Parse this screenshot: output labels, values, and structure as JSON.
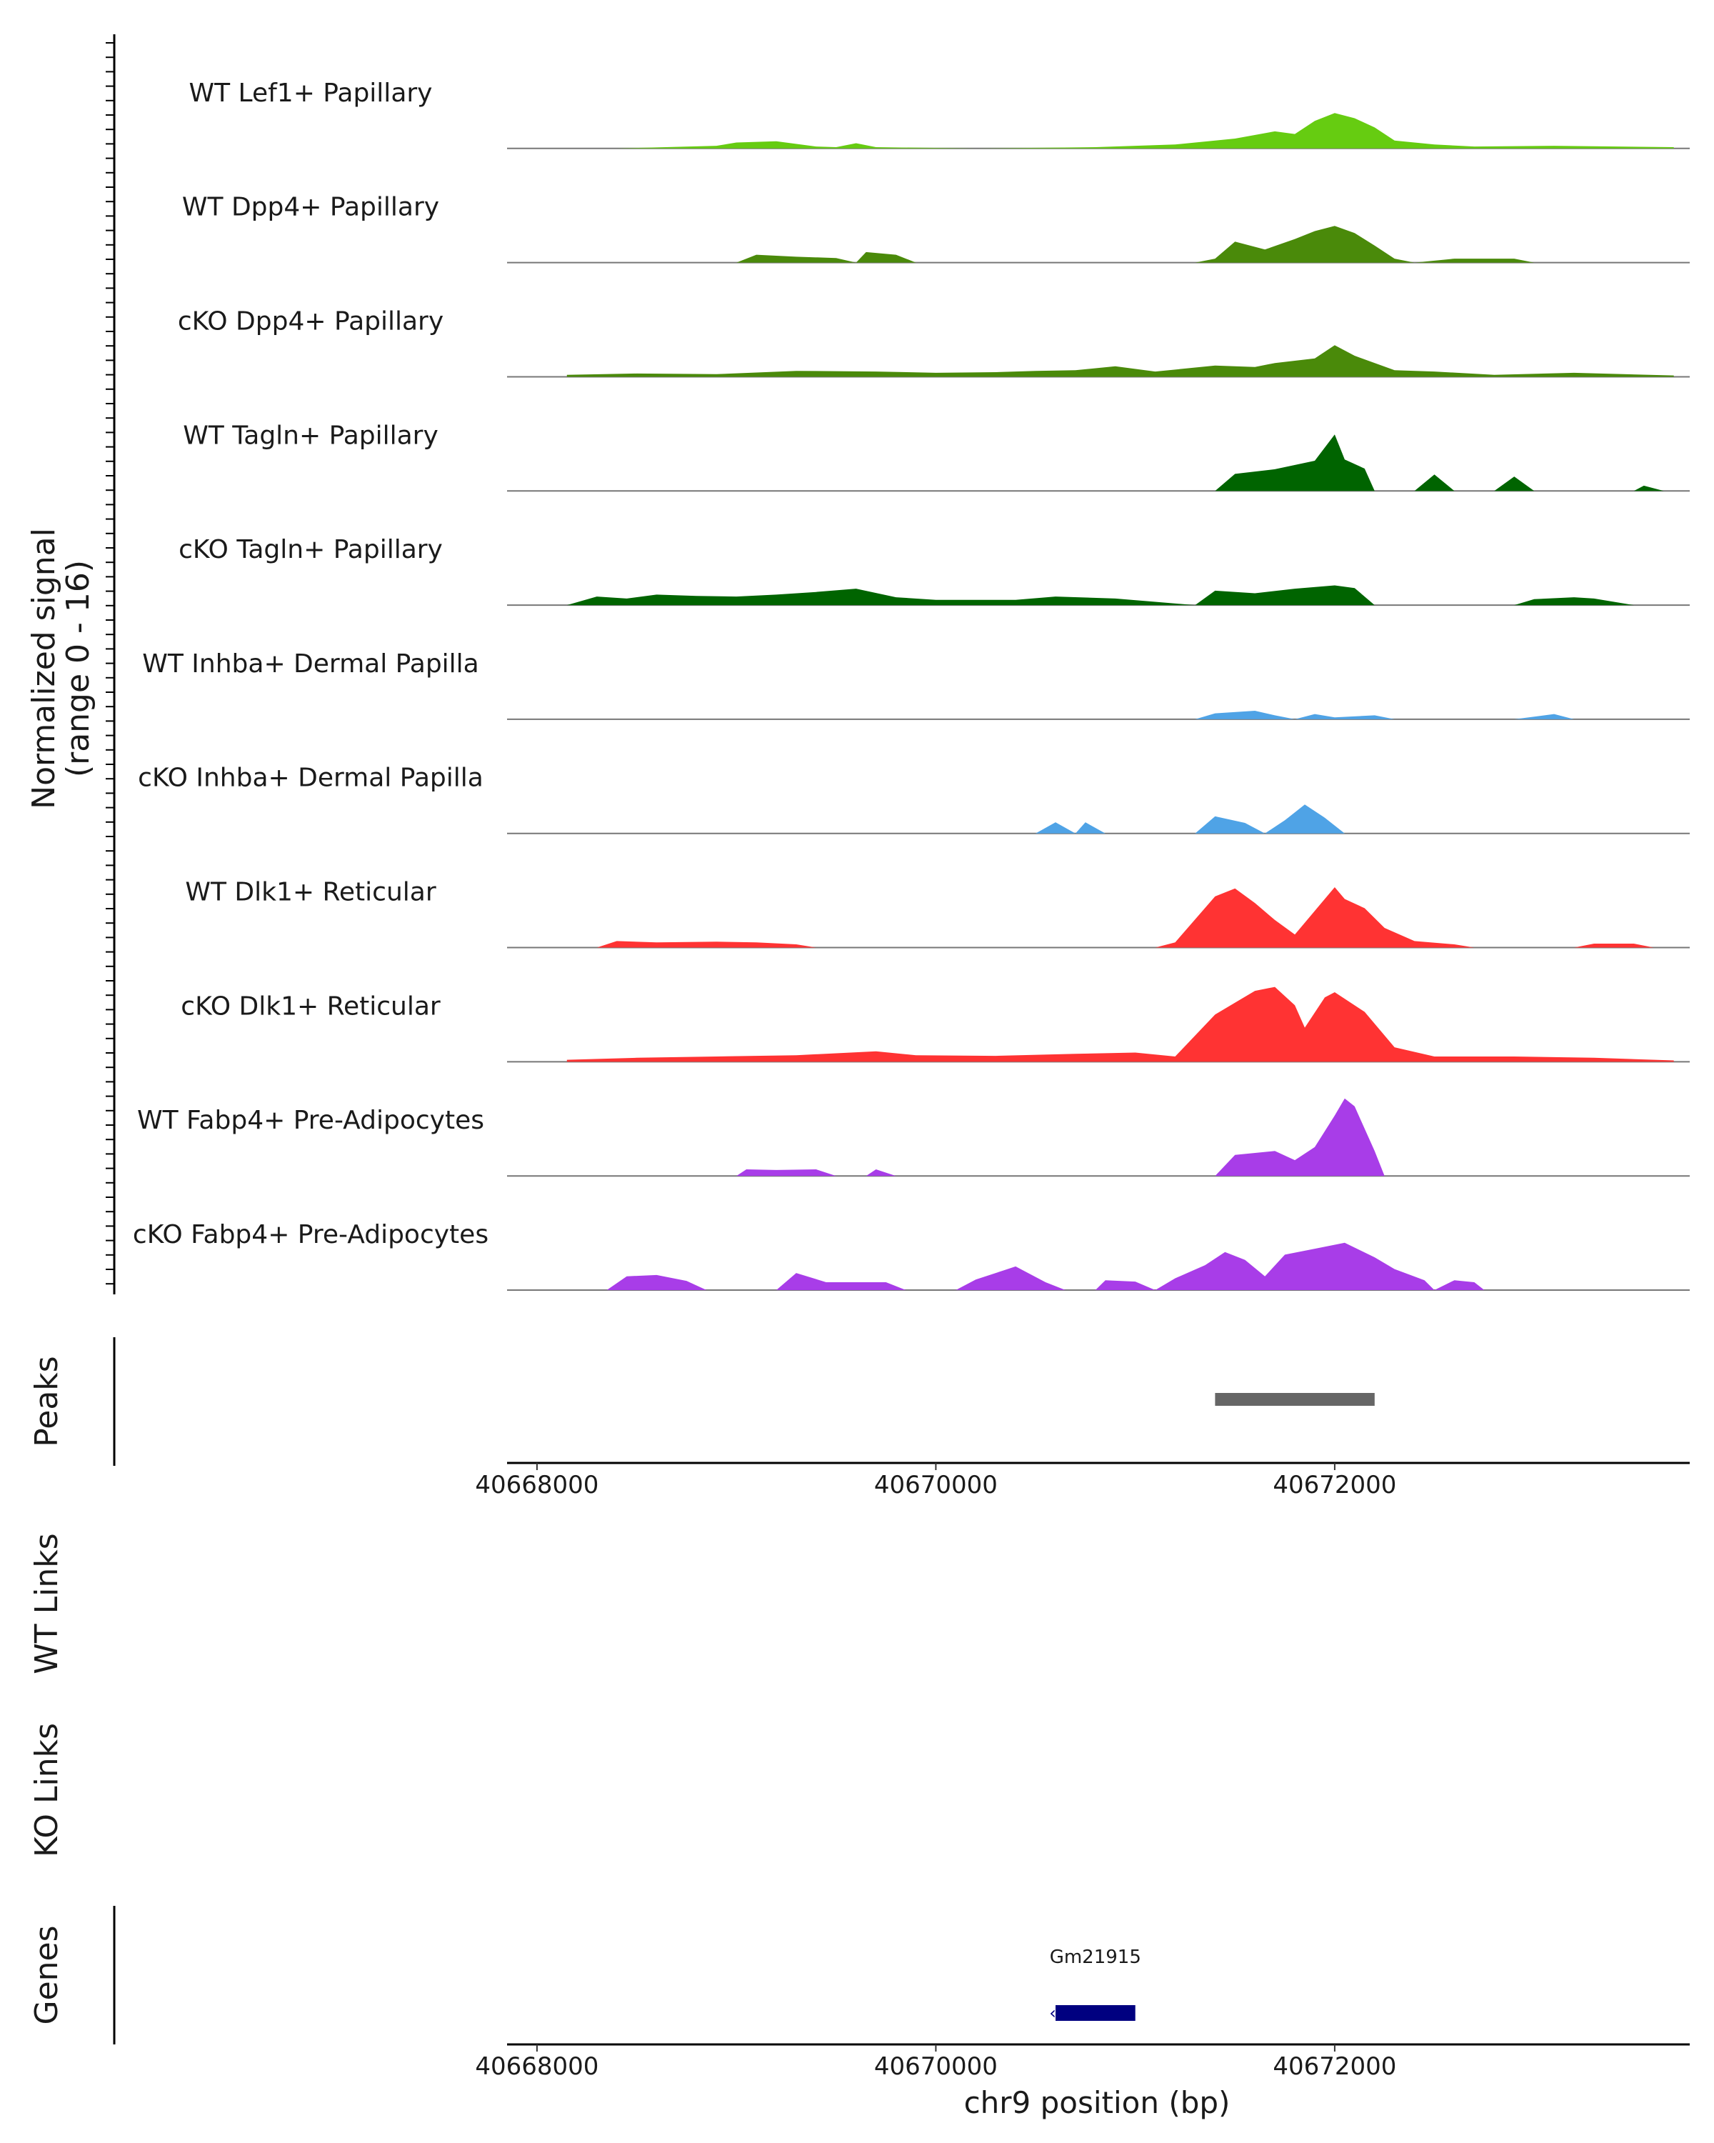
{
  "y_axis": {
    "label_line1": "Normalized signal",
    "label_line2": "(range 0 - 16)"
  },
  "panels": {
    "peaks": "Peaks",
    "wt_links": "WT Links",
    "ko_links": "KO Links",
    "genes": "Genes"
  },
  "x_axis": {
    "label": "chr9 position (bp)",
    "ticks": [
      "40668000",
      "40670000",
      "40672000"
    ]
  },
  "gene": {
    "name": "Gm21915"
  },
  "chart_data": {
    "type": "area",
    "x_unit": "bp",
    "xlim": [
      40667850,
      40673780
    ],
    "ylim": [
      0,
      16
    ],
    "tracks": [
      {
        "name": "WT Lef1+ Papillary",
        "color": "#66CC11",
        "points": [
          [
            40668400,
            0
          ],
          [
            40668900,
            0.4
          ],
          [
            40669000,
            0.9
          ],
          [
            40669200,
            1.1
          ],
          [
            40669400,
            0.3
          ],
          [
            40669500,
            0.2
          ],
          [
            40669600,
            0.8
          ],
          [
            40669700,
            0.2
          ],
          [
            40670200,
            0
          ],
          [
            40670800,
            0.2
          ],
          [
            40671200,
            0.6
          ],
          [
            40671500,
            1.5
          ],
          [
            40671700,
            2.6
          ],
          [
            40671800,
            2.2
          ],
          [
            40671900,
            4.2
          ],
          [
            40672000,
            5.4
          ],
          [
            40672100,
            4.6
          ],
          [
            40672200,
            3.2
          ],
          [
            40672300,
            1.2
          ],
          [
            40672500,
            0.6
          ],
          [
            40672700,
            0.3
          ],
          [
            40673100,
            0.4
          ],
          [
            40673700,
            0.2
          ]
        ]
      },
      {
        "name": "WT Dpp4+ Papillary",
        "color": "#4A8A0A",
        "points": [
          [
            40669000,
            0
          ],
          [
            40669100,
            1.2
          ],
          [
            40669300,
            0.9
          ],
          [
            40669500,
            0.7
          ],
          [
            40669600,
            0
          ],
          [
            40669650,
            1.6
          ],
          [
            40669800,
            1.2
          ],
          [
            40669900,
            0
          ],
          [
            40671300,
            0
          ],
          [
            40671400,
            0.6
          ],
          [
            40671500,
            3.2
          ],
          [
            40671650,
            2.0
          ],
          [
            40671800,
            3.6
          ],
          [
            40671900,
            4.8
          ],
          [
            40672000,
            5.6
          ],
          [
            40672100,
            4.5
          ],
          [
            40672200,
            2.6
          ],
          [
            40672300,
            0.6
          ],
          [
            40672400,
            0
          ],
          [
            40672600,
            0.6
          ],
          [
            40672900,
            0.6
          ],
          [
            40673000,
            0
          ]
        ]
      },
      {
        "name": "cKO Dpp4+ Papillary",
        "color": "#4A8A0A",
        "points": [
          [
            40668150,
            0.3
          ],
          [
            40668500,
            0.5
          ],
          [
            40668900,
            0.4
          ],
          [
            40669300,
            0.9
          ],
          [
            40669700,
            0.8
          ],
          [
            40670000,
            0.6
          ],
          [
            40670300,
            0.7
          ],
          [
            40670500,
            0.9
          ],
          [
            40670700,
            1.0
          ],
          [
            40670900,
            1.6
          ],
          [
            40671100,
            0.8
          ],
          [
            40671400,
            1.7
          ],
          [
            40671600,
            1.5
          ],
          [
            40671700,
            2.1
          ],
          [
            40671900,
            2.8
          ],
          [
            40672000,
            4.8
          ],
          [
            40672100,
            3.2
          ],
          [
            40672300,
            1.0
          ],
          [
            40672500,
            0.8
          ],
          [
            40672800,
            0.3
          ],
          [
            40673200,
            0.6
          ],
          [
            40673700,
            0.2
          ]
        ]
      },
      {
        "name": "WT Tagln+ Papillary",
        "color": "#006400",
        "points": [
          [
            40671400,
            0
          ],
          [
            40671500,
            2.6
          ],
          [
            40671700,
            3.3
          ],
          [
            40671900,
            4.6
          ],
          [
            40672000,
            8.6
          ],
          [
            40672050,
            4.8
          ],
          [
            40672150,
            3.4
          ],
          [
            40672200,
            0
          ],
          [
            40672400,
            0
          ],
          [
            40672500,
            2.5
          ],
          [
            40672600,
            0
          ],
          [
            40672800,
            0
          ],
          [
            40672900,
            2.2
          ],
          [
            40673000,
            0
          ],
          [
            40673500,
            0
          ],
          [
            40673550,
            0.8
          ],
          [
            40673650,
            0
          ]
        ]
      },
      {
        "name": "cKO Tagln+ Papillary",
        "color": "#006400",
        "points": [
          [
            40668150,
            0
          ],
          [
            40668300,
            1.3
          ],
          [
            40668450,
            1.0
          ],
          [
            40668600,
            1.6
          ],
          [
            40668800,
            1.4
          ],
          [
            40669000,
            1.3
          ],
          [
            40669200,
            1.6
          ],
          [
            40669400,
            2.0
          ],
          [
            40669600,
            2.5
          ],
          [
            40669800,
            1.2
          ],
          [
            40670000,
            0.8
          ],
          [
            40670400,
            0.8
          ],
          [
            40670600,
            1.3
          ],
          [
            40670900,
            1.0
          ],
          [
            40671100,
            0.5
          ],
          [
            40671300,
            0
          ],
          [
            40671400,
            2.2
          ],
          [
            40671600,
            1.8
          ],
          [
            40671800,
            2.5
          ],
          [
            40672000,
            3.0
          ],
          [
            40672100,
            2.6
          ],
          [
            40672200,
            0
          ],
          [
            40672400,
            0
          ],
          [
            40672900,
            0
          ],
          [
            40673000,
            0.9
          ],
          [
            40673200,
            1.2
          ],
          [
            40673300,
            1.0
          ],
          [
            40673500,
            0
          ]
        ]
      },
      {
        "name": "WT Inhba+ Dermal Papilla",
        "color": "#4FA3E6",
        "points": [
          [
            40671300,
            0
          ],
          [
            40671400,
            0.9
          ],
          [
            40671600,
            1.3
          ],
          [
            40671700,
            0.6
          ],
          [
            40671800,
            0
          ],
          [
            40671900,
            0.8
          ],
          [
            40672000,
            0.3
          ],
          [
            40672200,
            0.6
          ],
          [
            40672300,
            0
          ],
          [
            40672900,
            0
          ],
          [
            40673100,
            0.8
          ],
          [
            40673200,
            0
          ]
        ]
      },
      {
        "name": "cKO Inhba+ Dermal Papilla",
        "color": "#4FA3E6",
        "points": [
          [
            40670500,
            0
          ],
          [
            40670600,
            1.7
          ],
          [
            40670700,
            0
          ],
          [
            40670750,
            1.7
          ],
          [
            40670850,
            0
          ],
          [
            40671300,
            0
          ],
          [
            40671400,
            2.6
          ],
          [
            40671550,
            1.6
          ],
          [
            40671650,
            0
          ],
          [
            40671750,
            2.0
          ],
          [
            40671850,
            4.4
          ],
          [
            40671950,
            2.4
          ],
          [
            40672050,
            0
          ]
        ]
      },
      {
        "name": "WT Dlk1+ Reticular",
        "color": "#FF3333",
        "points": [
          [
            40668300,
            0
          ],
          [
            40668400,
            1.0
          ],
          [
            40668600,
            0.8
          ],
          [
            40668900,
            0.9
          ],
          [
            40669100,
            0.8
          ],
          [
            40669300,
            0.5
          ],
          [
            40669400,
            0
          ],
          [
            40671100,
            0
          ],
          [
            40671200,
            0.8
          ],
          [
            40671400,
            7.8
          ],
          [
            40671500,
            9.0
          ],
          [
            40671600,
            6.8
          ],
          [
            40671700,
            4.2
          ],
          [
            40671800,
            2.0
          ],
          [
            40671900,
            5.6
          ],
          [
            40672000,
            9.2
          ],
          [
            40672050,
            7.4
          ],
          [
            40672150,
            6.0
          ],
          [
            40672250,
            3.0
          ],
          [
            40672400,
            1.0
          ],
          [
            40672600,
            0.5
          ],
          [
            40672700,
            0
          ],
          [
            40673200,
            0
          ],
          [
            40673300,
            0.6
          ],
          [
            40673500,
            0.6
          ],
          [
            40673600,
            0
          ]
        ]
      },
      {
        "name": "cKO Dlk1+ Reticular",
        "color": "#FF3333",
        "points": [
          [
            40668150,
            0.3
          ],
          [
            40668500,
            0.6
          ],
          [
            40668900,
            0.8
          ],
          [
            40669300,
            1.0
          ],
          [
            40669700,
            1.6
          ],
          [
            40669900,
            1.0
          ],
          [
            40670300,
            0.9
          ],
          [
            40670700,
            1.2
          ],
          [
            40671000,
            1.4
          ],
          [
            40671200,
            0.8
          ],
          [
            40671400,
            7.2
          ],
          [
            40671600,
            10.8
          ],
          [
            40671700,
            11.4
          ],
          [
            40671800,
            8.6
          ],
          [
            40671850,
            5.2
          ],
          [
            40671950,
            9.8
          ],
          [
            40672000,
            10.6
          ],
          [
            40672150,
            7.6
          ],
          [
            40672300,
            2.2
          ],
          [
            40672500,
            0.8
          ],
          [
            40672900,
            0.8
          ],
          [
            40673300,
            0.6
          ],
          [
            40673700,
            0.2
          ]
        ]
      },
      {
        "name": "WT Fabp4+ Pre-Adipocytes",
        "color": "#A83DE8",
        "points": [
          [
            40669000,
            0
          ],
          [
            40669050,
            1.0
          ],
          [
            40669200,
            0.9
          ],
          [
            40669400,
            1.0
          ],
          [
            40669500,
            0
          ],
          [
            40669650,
            0
          ],
          [
            40669700,
            1.0
          ],
          [
            40669800,
            0
          ],
          [
            40671400,
            0
          ],
          [
            40671500,
            3.2
          ],
          [
            40671700,
            3.8
          ],
          [
            40671800,
            2.4
          ],
          [
            40671900,
            4.4
          ],
          [
            40672000,
            9.2
          ],
          [
            40672050,
            11.8
          ],
          [
            40672100,
            10.6
          ],
          [
            40672200,
            3.8
          ],
          [
            40672250,
            0
          ]
        ]
      },
      {
        "name": "cKO Fabp4+ Pre-Adipocytes",
        "color": "#A83DE8",
        "points": [
          [
            40668350,
            0
          ],
          [
            40668450,
            2.1
          ],
          [
            40668600,
            2.3
          ],
          [
            40668750,
            1.4
          ],
          [
            40668850,
            0
          ],
          [
            40669200,
            0
          ],
          [
            40669300,
            2.6
          ],
          [
            40669450,
            1.2
          ],
          [
            40669750,
            1.2
          ],
          [
            40669850,
            0
          ],
          [
            40670100,
            0
          ],
          [
            40670200,
            1.6
          ],
          [
            40670400,
            3.6
          ],
          [
            40670550,
            1.2
          ],
          [
            40670650,
            0
          ],
          [
            40670800,
            0
          ],
          [
            40670850,
            1.5
          ],
          [
            40671000,
            1.3
          ],
          [
            40671100,
            0
          ],
          [
            40671200,
            1.8
          ],
          [
            40671350,
            3.8
          ],
          [
            40671450,
            5.8
          ],
          [
            40671550,
            4.6
          ],
          [
            40671650,
            2.1
          ],
          [
            40671750,
            5.4
          ],
          [
            40671900,
            6.3
          ],
          [
            40672050,
            7.2
          ],
          [
            40672200,
            5.0
          ],
          [
            40672300,
            3.2
          ],
          [
            40672450,
            1.5
          ],
          [
            40672500,
            0
          ],
          [
            40672600,
            1.5
          ],
          [
            40672700,
            1.2
          ],
          [
            40672750,
            0
          ]
        ]
      }
    ],
    "peaks": [
      {
        "start": 40671400,
        "end": 40672200
      }
    ],
    "genes": [
      {
        "name": "Gm21915",
        "start": 40670600,
        "end": 40671000,
        "strand": "-"
      }
    ]
  }
}
